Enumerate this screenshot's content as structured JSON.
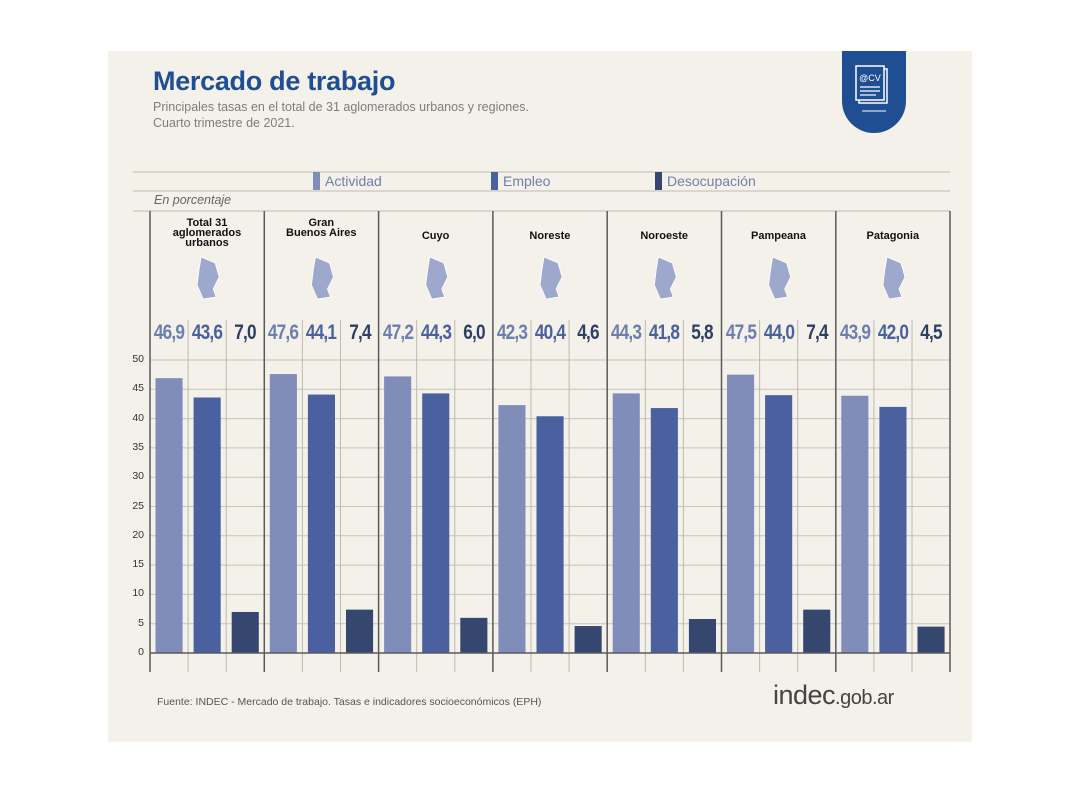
{
  "header": {
    "title": "Mercado de trabajo",
    "subtitle_line1": "Principales tasas en el total de 31 aglomerados urbanos y regiones.",
    "subtitle_line2": "Cuarto trimestre de 2021.",
    "badge_icon": "cv-document-icon",
    "badge_text": "@CV"
  },
  "legend": {
    "items": [
      {
        "label": "Actividad",
        "color": "#7f8db8"
      },
      {
        "label": "Empleo",
        "color": "#4b609e"
      },
      {
        "label": "Desocupación",
        "color": "#36476f"
      }
    ]
  },
  "unit_label": "En porcentaje",
  "chart_data": {
    "type": "bar",
    "title": "Mercado de trabajo",
    "ylabel": "En porcentaje",
    "ylim": [
      0,
      50
    ],
    "yticks": [
      "0",
      "5",
      "10",
      "15",
      "20",
      "25",
      "30",
      "35",
      "40",
      "45",
      "50"
    ],
    "categories": [
      "Total 31 aglomerados urbanos",
      "Gran Buenos Aires",
      "Cuyo",
      "Noreste",
      "Noroeste",
      "Pampeana",
      "Patagonia"
    ],
    "category_titles": [
      [
        "Total 31",
        "aglomerados",
        "urbanos"
      ],
      [
        "Gran",
        "Buenos Aires"
      ],
      [
        "Cuyo"
      ],
      [
        "Noreste"
      ],
      [
        "Noroeste"
      ],
      [
        "Pampeana"
      ],
      [
        "Patagonia"
      ]
    ],
    "series": [
      {
        "name": "Actividad",
        "values": [
          46.9,
          47.6,
          47.2,
          42.3,
          44.3,
          47.5,
          43.9
        ],
        "labels": [
          "46,9",
          "47,6",
          "47,2",
          "42,3",
          "44,3",
          "47,5",
          "43,9"
        ]
      },
      {
        "name": "Empleo",
        "values": [
          43.6,
          44.1,
          44.3,
          40.4,
          41.8,
          44.0,
          42.0
        ],
        "labels": [
          "43,6",
          "44,1",
          "44,3",
          "40,4",
          "41,8",
          "44,0",
          "42,0"
        ]
      },
      {
        "name": "Desocupación",
        "values": [
          7.0,
          7.4,
          6.0,
          4.6,
          5.8,
          7.4,
          4.5
        ],
        "labels": [
          "7,0",
          "7,4",
          "6,0",
          "4,6",
          "5,8",
          "7,4",
          "4,5"
        ]
      }
    ]
  },
  "footer": {
    "source": "Fuente: INDEC - Mercado de trabajo. Tasas e indicadores socioeconómicos (EPH)",
    "logo_main": "indec",
    "logo_tld": ".gob.ar"
  }
}
